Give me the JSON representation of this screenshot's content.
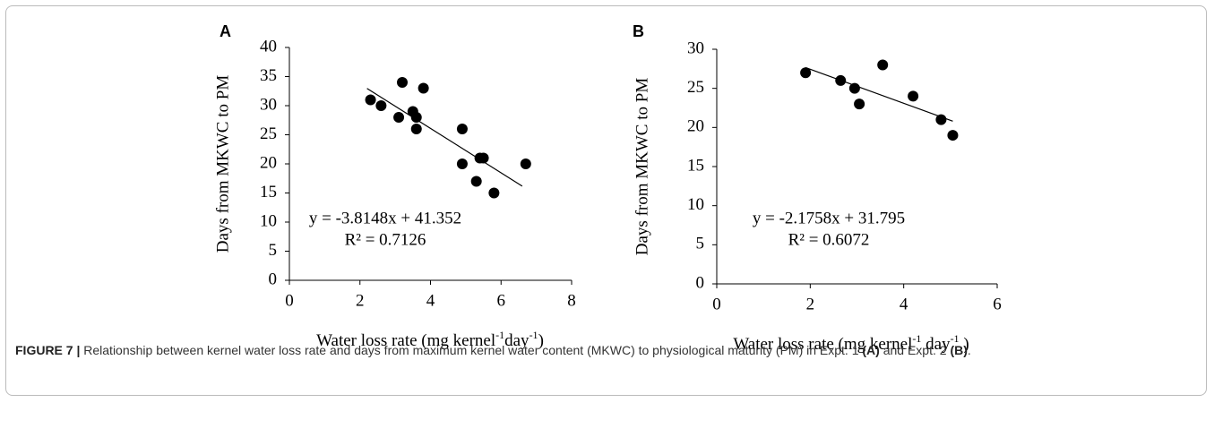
{
  "chart_data": [
    {
      "type": "scatter",
      "panel_label": "A",
      "color": "#000000",
      "ylabel": "Days from MKWC to PM",
      "xlabel": [
        {
          "text": "Water loss rate (mg kernel",
          "sup": false
        },
        {
          "text": "-1",
          "sup": true
        },
        {
          "text": "day",
          "sup": false
        },
        {
          "text": "-1",
          "sup": true
        },
        {
          "text": ")",
          "sup": false
        }
      ],
      "x": [
        2.3,
        2.6,
        3.1,
        3.2,
        3.5,
        3.6,
        3.6,
        3.8,
        4.9,
        4.9,
        5.4,
        5.5,
        5.3,
        5.8,
        6.7
      ],
      "y": [
        31,
        30,
        28,
        34,
        29,
        28,
        26,
        33,
        26,
        20,
        21,
        21,
        17,
        15,
        20
      ],
      "xlim": [
        0,
        8
      ],
      "ylim": [
        0,
        40
      ],
      "xticks": [
        0,
        2,
        4,
        6,
        8
      ],
      "yticks": [
        0,
        5,
        10,
        15,
        20,
        25,
        30,
        35,
        40
      ],
      "trendline": {
        "slope": -3.8148,
        "intercept": 41.352,
        "x": [
          2.2,
          6.6
        ]
      },
      "annotations": [
        "y = -3.8148x + 41.352",
        "R² = 0.7126"
      ]
    },
    {
      "type": "scatter",
      "panel_label": "B",
      "color": "#000000",
      "ylabel": "Days from MKWC to PM",
      "xlabel": [
        {
          "text": "Water loss rate (mg kernel",
          "sup": false
        },
        {
          "text": "-1",
          "sup": true
        },
        {
          "text": " day",
          "sup": false
        },
        {
          "text": "-1",
          "sup": true
        },
        {
          "text": " )",
          "sup": false
        }
      ],
      "x": [
        1.9,
        2.65,
        2.95,
        3.05,
        3.55,
        4.2,
        4.8,
        5.05
      ],
      "y": [
        27,
        26,
        25,
        23,
        28,
        24,
        21,
        19
      ],
      "xlim": [
        0,
        6
      ],
      "ylim": [
        0,
        30
      ],
      "xticks": [
        0,
        2,
        4,
        6
      ],
      "yticks": [
        0,
        5,
        10,
        15,
        20,
        25,
        30
      ],
      "trendline": {
        "slope": -2.1758,
        "intercept": 31.795,
        "x": [
          1.9,
          5.05
        ]
      },
      "annotations": [
        "y = -2.1758x + 31.795",
        "R² = 0.6072"
      ]
    }
  ],
  "caption": [
    {
      "text": "FIGURE 7 |",
      "bold": true
    },
    {
      "text": " Relationship between kernel water loss rate and days from maximum kernel water content (MKWC) to physiological maturity (PM) in Expt. 1 ",
      "bold": false
    },
    {
      "text": "(A)",
      "bold": true
    },
    {
      "text": " and Expt. 2 ",
      "bold": false
    },
    {
      "text": "(B)",
      "bold": true
    },
    {
      "text": ".",
      "bold": false
    }
  ]
}
